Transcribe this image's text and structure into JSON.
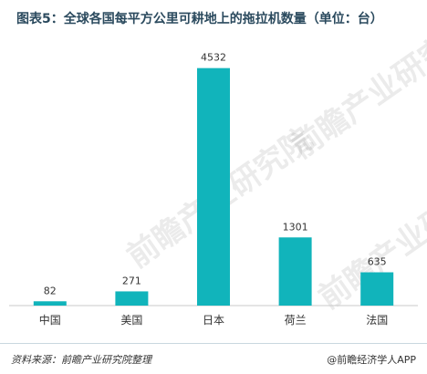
{
  "header": {
    "title": "图表5：全球各国每平方公里可耕地上的拖拉机数量（单位：台）"
  },
  "watermark": {
    "text": "前瞻产业研究院"
  },
  "footer": {
    "source": "资料来源：前瞻产业研究院整理",
    "credit": "@前瞻经济学人APP"
  },
  "colors": {
    "bar": "#11b4bb",
    "axis": "#c8c8c8",
    "label": "#333333"
  },
  "chart_data": {
    "type": "bar",
    "title": "图表5：全球各国每平方公里可耕地上的拖拉机数量（单位：台）",
    "categories": [
      "中国",
      "美国",
      "日本",
      "荷兰",
      "法国"
    ],
    "values": [
      82,
      271,
      4532,
      1301,
      635
    ],
    "ylim": [
      0,
      4700
    ],
    "grid": false,
    "legend": "none"
  }
}
